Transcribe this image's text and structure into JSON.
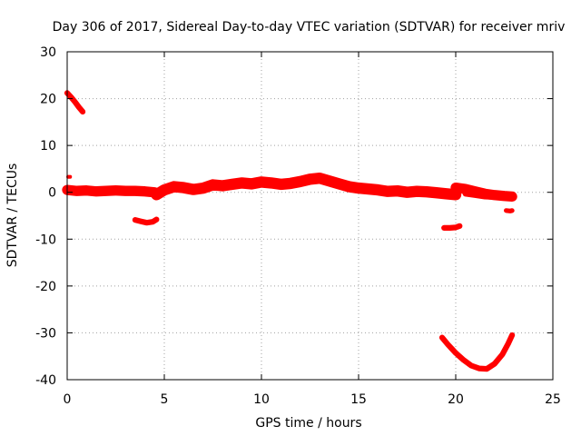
{
  "chart_data": {
    "type": "scatter",
    "title": "Day 306 of 2017, Sidereal Day-to-day VTEC variation (SDTVAR) for receiver mriv",
    "xlabel": "GPS time / hours",
    "ylabel": "SDTVAR / TECUs",
    "xlim": [
      0,
      25
    ],
    "ylim": [
      -40,
      30
    ],
    "xticks": [
      0,
      5,
      10,
      15,
      20,
      25
    ],
    "yticks": [
      -40,
      -30,
      -20,
      -10,
      0,
      10,
      20,
      30
    ],
    "xtick_labels": [
      "0",
      "5",
      "10",
      "15",
      "20",
      "25"
    ],
    "ytick_labels": [
      "-40",
      "-30",
      "-20",
      "-10",
      "0",
      "10",
      "20",
      "30"
    ],
    "grid": true,
    "color": "#ff0000",
    "series": [
      {
        "name": "main-band-1",
        "thickness": 2.2,
        "x": [
          0.0,
          0.5,
          1.0,
          1.5,
          2.0,
          2.5,
          3.0,
          3.5,
          4.0,
          4.5
        ],
        "y": [
          0.5,
          0.3,
          0.4,
          0.2,
          0.3,
          0.4,
          0.3,
          0.3,
          0.2,
          0.0
        ]
      },
      {
        "name": "main-band-2",
        "thickness": 2.4,
        "x": [
          4.6,
          5.0,
          5.5,
          6.0,
          6.5,
          7.0,
          7.5,
          8.0,
          8.5,
          9.0,
          9.5,
          10.0,
          10.5,
          11.0,
          11.5,
          12.0,
          12.5,
          13.0,
          13.5,
          14.0,
          14.5,
          15.0,
          15.5,
          16.0,
          16.5,
          17.0,
          17.5,
          18.0,
          18.5,
          19.0,
          19.5,
          20.0
        ],
        "y": [
          -0.5,
          0.5,
          1.2,
          1.0,
          0.6,
          0.9,
          1.6,
          1.4,
          1.7,
          2.0,
          1.8,
          2.2,
          2.0,
          1.7,
          1.9,
          2.3,
          2.8,
          3.0,
          2.4,
          1.8,
          1.2,
          0.9,
          0.7,
          0.5,
          0.2,
          0.3,
          0.0,
          0.2,
          0.1,
          -0.1,
          -0.3,
          -0.5
        ]
      },
      {
        "name": "main-band-3",
        "thickness": 2.2,
        "x": [
          20.0,
          20.5,
          21.0,
          21.5,
          22.0,
          22.5,
          22.9
        ],
        "y": [
          1.0,
          0.7,
          0.2,
          -0.3,
          -0.6,
          -0.8,
          -0.9
        ]
      },
      {
        "name": "main-band-tail",
        "thickness": 1.2,
        "x": [
          20.5,
          21.0,
          21.5,
          22.0,
          22.5,
          22.9
        ],
        "y": [
          -0.3,
          -0.6,
          -0.9,
          -1.0,
          -1.1,
          -1.2
        ]
      },
      {
        "name": "early-descent",
        "thickness": 1.2,
        "x": [
          0.0,
          0.2,
          0.4,
          0.6,
          0.8
        ],
        "y": [
          21.2,
          20.3,
          19.3,
          18.2,
          17.2
        ]
      },
      {
        "name": "segment-near-4h",
        "thickness": 1.2,
        "x": [
          3.5,
          3.8,
          4.1,
          4.4,
          4.6
        ],
        "y": [
          -5.9,
          -6.2,
          -6.5,
          -6.3,
          -5.8
        ]
      },
      {
        "name": "segment-near-20h",
        "thickness": 1.2,
        "x": [
          19.4,
          19.7,
          20.0,
          20.2
        ],
        "y": [
          -7.6,
          -7.6,
          -7.5,
          -7.2
        ]
      },
      {
        "name": "segment-near-23h",
        "thickness": 1.0,
        "x": [
          22.6,
          22.8,
          22.9
        ],
        "y": [
          -3.9,
          -4.0,
          -3.9
        ]
      },
      {
        "name": "deep-arc",
        "thickness": 1.2,
        "x": [
          19.3,
          19.6,
          20.0,
          20.4,
          20.8,
          21.2,
          21.6,
          22.0,
          22.4,
          22.7,
          22.9
        ],
        "y": [
          -31.0,
          -32.5,
          -34.3,
          -35.8,
          -37.0,
          -37.6,
          -37.7,
          -36.6,
          -34.6,
          -32.3,
          -30.5
        ]
      },
      {
        "name": "spike-at-0h",
        "thickness": 0.8,
        "x": [
          0.05,
          0.15
        ],
        "y": [
          3.3,
          3.3
        ]
      }
    ]
  }
}
